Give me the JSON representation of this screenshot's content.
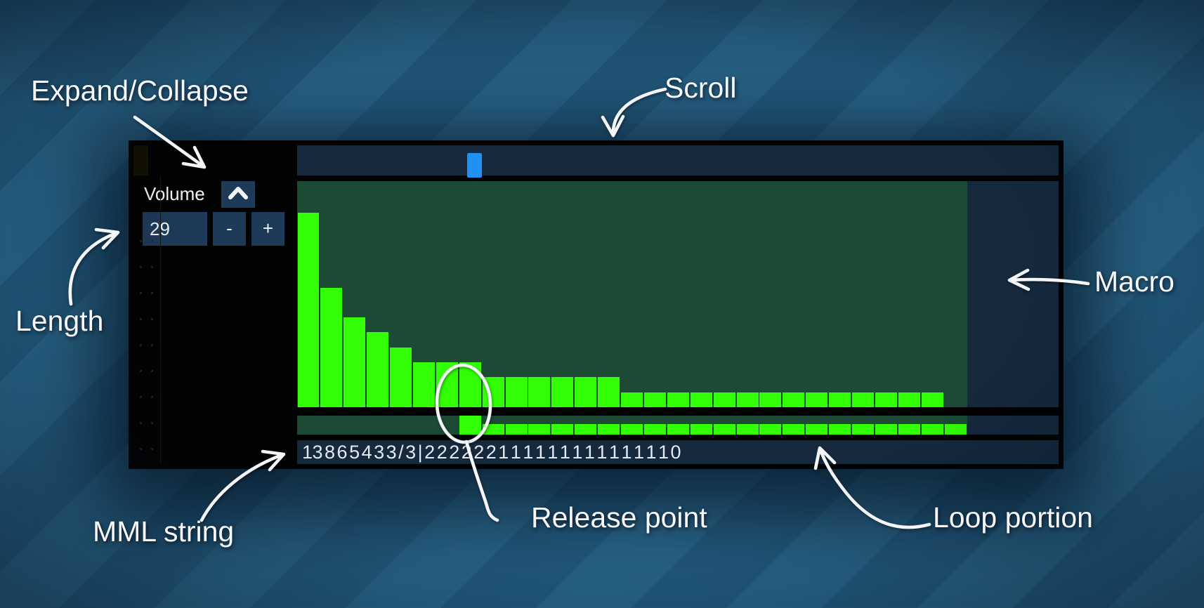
{
  "colors": {
    "bright_green": "#32ff05",
    "dark_green": "#1c4a34",
    "panel_navy": "#16293d",
    "control_navy": "#1d3a58",
    "scroll_thumb_blue": "#2191f4",
    "bg_stripe_light": "#2d6f95",
    "bg_stripe_dark": "#266389"
  },
  "annotations": {
    "expand_collapse": "Expand/Collapse",
    "scroll": "Scroll",
    "length": "Length",
    "macro": "Macro",
    "release_point": "Release point",
    "loop_portion": "Loop portion",
    "mml_string": "MML string"
  },
  "macro_header": {
    "name": "Volume",
    "collapse_icon": "chevron-up"
  },
  "length_controls": {
    "value": "29",
    "decrement": "-",
    "increment": "+"
  },
  "mml": {
    "value": "13 8 6 5 4 3 3 / 3 | 2 2 2 2 2 2 1 1 1 1 1 1 1 1 1 1 1 1 1 1 0"
  },
  "chart_data": {
    "type": "bar",
    "values": [
      13,
      8,
      6,
      5,
      4,
      3,
      3,
      3,
      2,
      2,
      2,
      2,
      2,
      2,
      1,
      1,
      1,
      1,
      1,
      1,
      1,
      1,
      1,
      1,
      1,
      1,
      1,
      1,
      0
    ],
    "length": 29,
    "release_index": 7,
    "loop_start_index": 8,
    "loop_end_index": 28,
    "ylim": [
      0,
      15
    ],
    "grid": false,
    "bar_color": "#32ff05",
    "background_color": "#1c4a34"
  }
}
